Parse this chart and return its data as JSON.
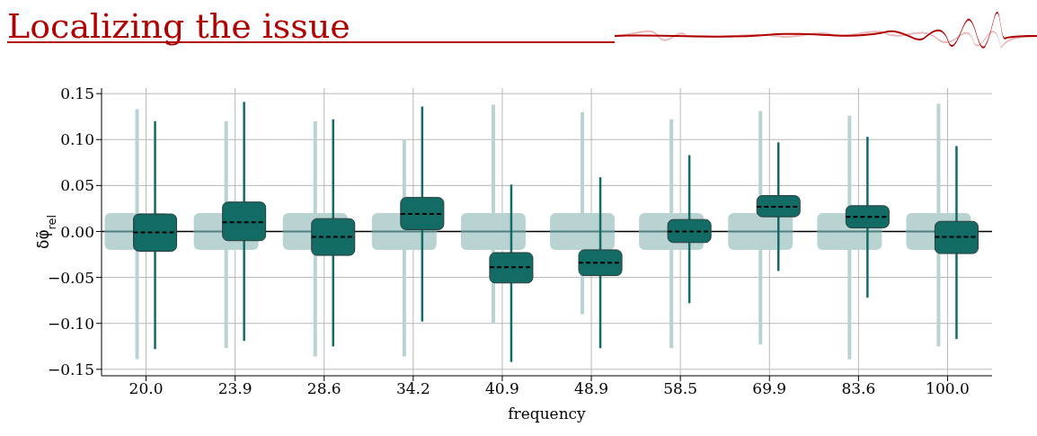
{
  "chart_data": {
    "type": "box",
    "title": "Localizing the issue",
    "xlabel": "frequency",
    "ylabel": "δφ̃$_{rel}$",
    "categories": [
      "20.0",
      "23.9",
      "28.6",
      "34.2",
      "40.9",
      "48.9",
      "58.5",
      "69.9",
      "83.6",
      "100.0"
    ],
    "series": [
      {
        "color": "#b9d3d3",
        "boxes": [
          {
            "low": -0.139,
            "q1": -0.02,
            "median": 0.0,
            "q3": 0.02,
            "high": 0.133
          },
          {
            "low": -0.127,
            "q1": -0.02,
            "median": 0.0,
            "q3": 0.02,
            "high": 0.12
          },
          {
            "low": -0.136,
            "q1": -0.02,
            "median": 0.0,
            "q3": 0.02,
            "high": 0.12
          },
          {
            "low": -0.136,
            "q1": -0.02,
            "median": 0.0,
            "q3": 0.02,
            "high": 0.1
          },
          {
            "low": -0.1,
            "q1": -0.02,
            "median": 0.0,
            "q3": 0.02,
            "high": 0.138
          },
          {
            "low": -0.09,
            "q1": -0.02,
            "median": 0.0,
            "q3": 0.02,
            "high": 0.13
          },
          {
            "low": -0.127,
            "q1": -0.02,
            "median": 0.0,
            "q3": 0.02,
            "high": 0.122
          },
          {
            "low": -0.123,
            "q1": -0.02,
            "median": 0.0,
            "q3": 0.02,
            "high": 0.131
          },
          {
            "low": -0.139,
            "q1": -0.02,
            "median": 0.0,
            "q3": 0.02,
            "high": 0.126
          },
          {
            "low": -0.125,
            "q1": -0.02,
            "median": 0.0,
            "q3": 0.02,
            "high": 0.139
          }
        ]
      },
      {
        "color": "#136b66",
        "boxes": [
          {
            "low": -0.128,
            "q1": -0.0215,
            "median": -0.001,
            "q3": 0.019,
            "high": 0.12
          },
          {
            "low": -0.119,
            "q1": -0.01,
            "median": 0.01,
            "q3": 0.032,
            "high": 0.141
          },
          {
            "low": -0.125,
            "q1": -0.026,
            "median": -0.006,
            "q3": 0.014,
            "high": 0.122
          },
          {
            "low": -0.098,
            "q1": 0.002,
            "median": 0.019,
            "q3": 0.037,
            "high": 0.136
          },
          {
            "low": -0.142,
            "q1": -0.056,
            "median": -0.039,
            "q3": -0.023,
            "high": 0.051
          },
          {
            "low": -0.127,
            "q1": -0.048,
            "median": -0.034,
            "q3": -0.02,
            "high": 0.059
          },
          {
            "low": -0.078,
            "q1": -0.012,
            "median": 0.0,
            "q3": 0.013,
            "high": 0.083
          },
          {
            "low": -0.043,
            "q1": 0.016,
            "median": 0.027,
            "q3": 0.039,
            "high": 0.097
          },
          {
            "low": -0.072,
            "q1": 0.004,
            "median": 0.016,
            "q3": 0.028,
            "high": 0.103
          },
          {
            "low": -0.117,
            "q1": -0.024,
            "median": -0.006,
            "q3": 0.011,
            "high": 0.093
          }
        ]
      }
    ],
    "ylim": [
      -0.157,
      0.156
    ],
    "yticks": [
      {
        "value": -0.15,
        "label": "−0.15"
      },
      {
        "value": -0.1,
        "label": "−0.10"
      },
      {
        "value": -0.05,
        "label": "−0.05"
      },
      {
        "value": 0,
        "label": "0.00"
      },
      {
        "value": 0.05,
        "label": "0.05"
      },
      {
        "value": 0.1,
        "label": "0.10"
      },
      {
        "value": 0.15,
        "label": "0.15"
      }
    ],
    "ref_lines": [
      {
        "axis": "y",
        "value": 0,
        "color": "#000000"
      }
    ],
    "grid": true
  }
}
